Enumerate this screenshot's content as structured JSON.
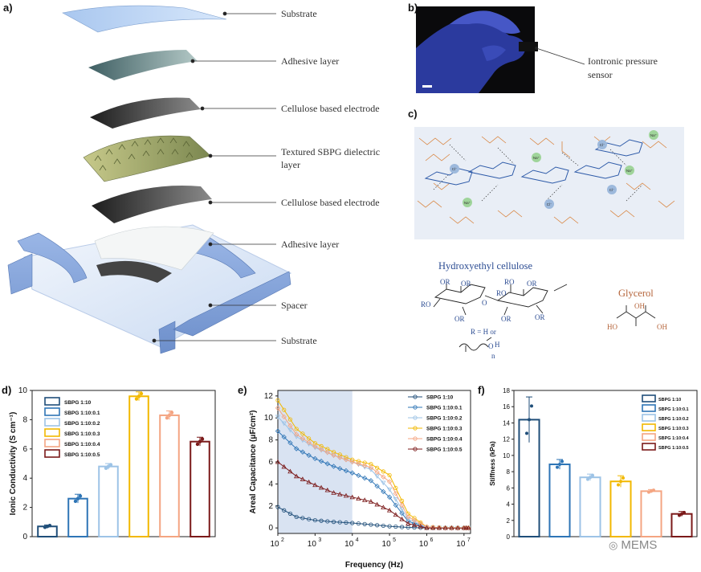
{
  "panels": {
    "a": {
      "label": "a)",
      "layers": [
        "Substrate",
        "Adhesive layer",
        "Cellulose based electrode",
        "Textured SBPG dielectric",
        "layer",
        "Cellulose based electrode",
        "Adhesive layer",
        "Spacer",
        "Substrate"
      ]
    },
    "b": {
      "label": "b)",
      "callout": [
        "Iontronic pressure",
        "sensor"
      ]
    },
    "c": {
      "label": "c)",
      "hec_title": "Hydroxyethyl cellulose",
      "glycerol_title": "Glycerol",
      "r_def": "R = H or",
      "ions": [
        "Na⁺",
        "Cl⁻"
      ],
      "or_label": "OR",
      "ro_label": "RO",
      "ho_label": "HO",
      "oh_label": "OH",
      "n_label": "n",
      "o_label": "O",
      "h_label": "H"
    },
    "d": {
      "label": "d)"
    },
    "e": {
      "label": "e)"
    },
    "f": {
      "label": "f)"
    }
  },
  "colors": [
    "#1f4e79",
    "#2e75b6",
    "#9dc3e6",
    "#f2b800",
    "#f4a582",
    "#7b1a1a"
  ],
  "chart_data": [
    {
      "type": "bar",
      "title": "",
      "ylabel": "Ionic Conductivity (S cm⁻¹)",
      "xlabel": "",
      "ylim": [
        0,
        10
      ],
      "yticks": [
        "0",
        "2",
        "4",
        "6",
        "8",
        "10"
      ],
      "categories": [
        "SBPG 1:10",
        "SBPG 1:10:0.1",
        "SBPG 1:10:0.2",
        "SBPG 1:10:0.3",
        "SBPG 1:10:0.4",
        "SBPG 1:10:0.5"
      ],
      "values": [
        0.7,
        2.6,
        4.8,
        9.6,
        8.3,
        6.5
      ],
      "errors": [
        0.1,
        0.3,
        0.2,
        0.3,
        0.3,
        0.3
      ],
      "legend": "top-left"
    },
    {
      "type": "line",
      "ylabel": "Areal Capacitance (μF/cm²)",
      "xlabel": "Frequency (Hz)",
      "xscale": "log",
      "xlim": [
        100,
        15000000
      ],
      "ylim": [
        -0.5,
        12.5
      ],
      "yticks": [
        "0",
        "2",
        "4",
        "6",
        "8",
        "10",
        "12"
      ],
      "xticks": [
        {
          "base": "10",
          "exp": "2",
          "v": 100
        },
        {
          "base": "10",
          "exp": "3",
          "v": 1000
        },
        {
          "base": "10",
          "exp": "4",
          "v": 10000
        },
        {
          "base": "10",
          "exp": "5",
          "v": 100000
        },
        {
          "base": "10",
          "exp": "6",
          "v": 1000000
        },
        {
          "base": "10",
          "exp": "7",
          "v": 10000000
        }
      ],
      "shaded_region": [
        100,
        10000
      ],
      "x": [
        100,
        316,
        1000,
        3162,
        10000,
        31623,
        100000,
        316228,
        1000000,
        3162278,
        10000000,
        15000000
      ],
      "series": [
        {
          "name": "SBPG 1:10",
          "marker": "circle",
          "values": [
            1.9,
            1.0,
            0.7,
            0.55,
            0.45,
            0.3,
            0.15,
            0.05,
            0.0,
            0.0,
            0.0,
            0.0
          ]
        },
        {
          "name": "SBPG 1:10:0.1",
          "marker": "diamond",
          "values": [
            8.8,
            7.2,
            6.3,
            5.6,
            5.0,
            4.3,
            2.8,
            0.6,
            0.05,
            0.0,
            0.0,
            0.0
          ]
        },
        {
          "name": "SBPG 1:10:0.2",
          "marker": "triangle-down",
          "values": [
            10.1,
            8.3,
            7.3,
            6.6,
            6.0,
            5.3,
            3.5,
            0.8,
            0.05,
            0.0,
            0.0,
            0.0
          ]
        },
        {
          "name": "SBPG 1:10:0.3",
          "marker": "circle",
          "values": [
            11.6,
            9.0,
            7.7,
            6.9,
            6.2,
            5.8,
            4.8,
            1.3,
            0.1,
            0.0,
            0.0,
            0.0
          ]
        },
        {
          "name": "SBPG 1:10:0.4",
          "marker": "diamond",
          "values": [
            10.9,
            8.5,
            7.4,
            6.6,
            6.0,
            5.5,
            4.2,
            1.0,
            0.1,
            0.0,
            0.0,
            0.0
          ]
        },
        {
          "name": "SBPG 1:10:0.5",
          "marker": "triangle-up",
          "values": [
            6.0,
            4.7,
            3.9,
            3.2,
            2.8,
            2.4,
            1.6,
            0.4,
            0.0,
            0.0,
            0.0,
            0.0
          ]
        }
      ],
      "legend": "top-right"
    },
    {
      "type": "bar",
      "ylabel": "Stiffness (kPa)",
      "xlabel": "",
      "ylim": [
        0,
        18
      ],
      "yticks": [
        "0",
        "2",
        "4",
        "6",
        "8",
        "10",
        "12",
        "14",
        "16",
        "18"
      ],
      "categories": [
        "SBPG 1:10",
        "SBPG 1:10:0.1",
        "SBPG 1:10:0.2",
        "SBPG 1:10:0.3",
        "SBPG 1:10:0.4",
        "SBPG 1:10:0.5"
      ],
      "values": [
        14.4,
        8.9,
        7.3,
        6.8,
        5.6,
        2.8
      ],
      "errors": [
        2.8,
        0.6,
        0.4,
        0.7,
        0.2,
        0.3
      ],
      "legend": "top-right"
    }
  ],
  "watermark": "MEMS"
}
